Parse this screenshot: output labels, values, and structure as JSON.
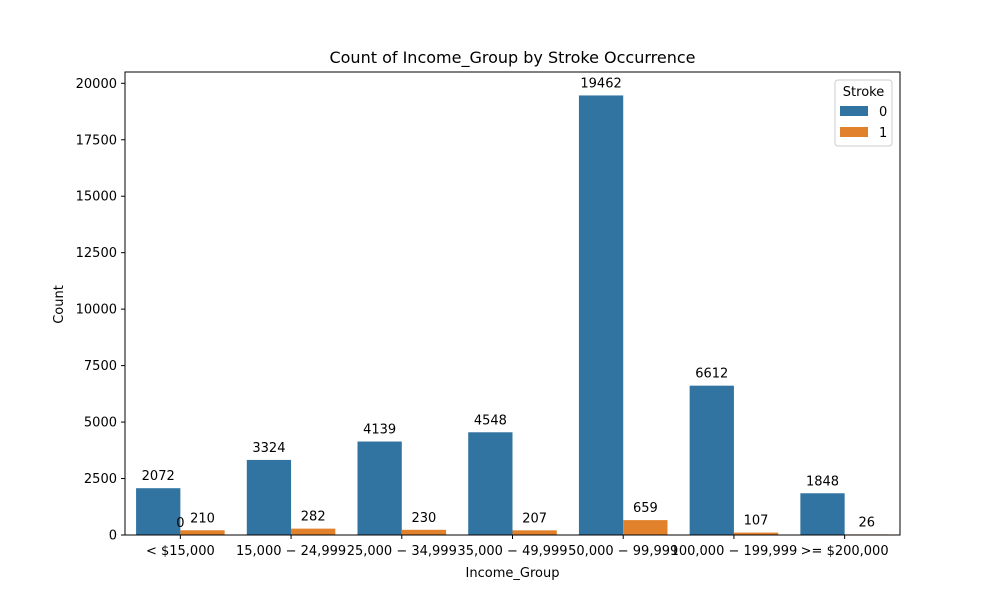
{
  "chart_data": {
    "type": "bar",
    "title": "Count of Income_Group by Stroke Occurrence",
    "xlabel": "Income_Group",
    "ylabel": "Count",
    "ylim": [
      0,
      20500
    ],
    "yticks": [
      0,
      2500,
      5000,
      7500,
      10000,
      12500,
      15000,
      17500,
      20000
    ],
    "grid": false,
    "categories": [
      "< $15,000",
      "$15,000 - $24,999",
      "$25,000 - $34,999",
      "$35,000 - $49,999",
      "$50,000 - $99,999",
      "$100,000 - $199,999",
      ">= $200,000"
    ],
    "category_labels_rendered": [
      "< $15,000",
      "15,000 − 24,999",
      "25,000 − 34,999",
      "35,000 − 49,999",
      "50,000 − 99,999",
      "100,000 − 199,999",
      ">= $200,000"
    ],
    "legend": {
      "title": "Stroke",
      "placement": "top-right"
    },
    "series": [
      {
        "name": "0",
        "color": "#3274a1",
        "values": [
          2072,
          3324,
          4139,
          4548,
          19462,
          6612,
          1848
        ]
      },
      {
        "name": "1",
        "color": "#e1812c",
        "values": [
          210,
          282,
          230,
          207,
          659,
          107,
          26
        ]
      }
    ],
    "annotations": [
      {
        "text": "0",
        "category_index": 0,
        "value": 0
      }
    ]
  }
}
